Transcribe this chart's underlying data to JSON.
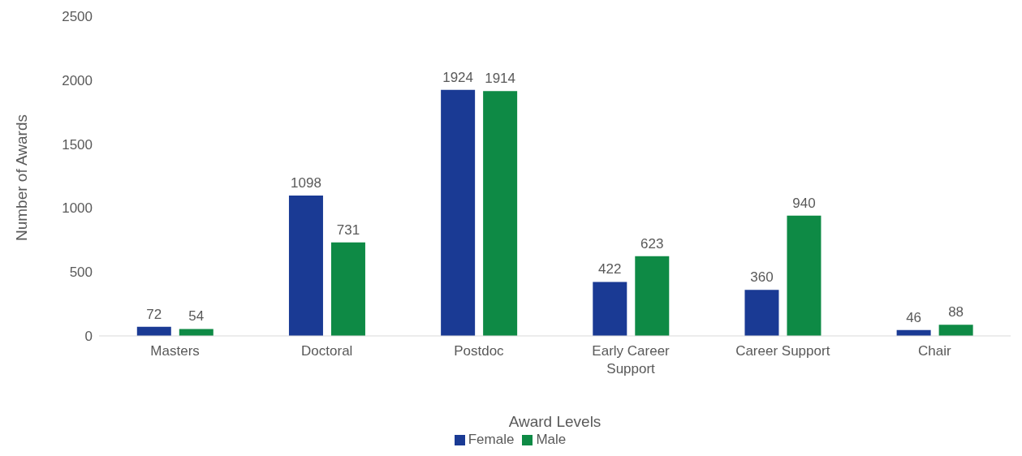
{
  "chart_data": {
    "type": "bar",
    "xlabel": "Award Levels",
    "ylabel": "Number of Awards",
    "categories": [
      "Masters",
      "Doctoral",
      "Postdoc",
      "Early Career Support",
      "Career Support",
      "Chair"
    ],
    "series": [
      {
        "name": "Female",
        "color": "#1a3a94",
        "values": [
          72,
          1098,
          1924,
          422,
          360,
          46
        ]
      },
      {
        "name": "Male",
        "color": "#0e8a45",
        "values": [
          54,
          731,
          1914,
          623,
          940,
          88
        ]
      }
    ],
    "ylim": [
      0,
      2500
    ],
    "yticks": [
      0,
      500,
      1000,
      1500,
      2000,
      2500
    ],
    "grid": false,
    "legend": "bottom",
    "data_labels": true
  }
}
